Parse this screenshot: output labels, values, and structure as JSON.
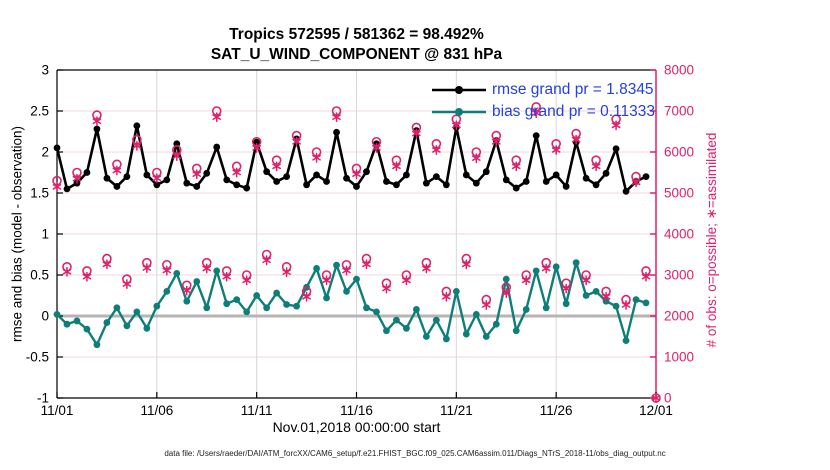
{
  "colors": {
    "rmse": "#000000",
    "bias": "#0e7f78",
    "obs": "#e0206a",
    "legend_text": "#2440e0",
    "grid_vertical": "#d8d8d8",
    "grid_horizontal": "#f3d4e0",
    "zero_line": "#b9b3b3",
    "axis_black": "#000000"
  },
  "footer": {
    "datafile": "data file: /Users/raeder/DAI/ATM_forcXX/CAM6_setup/f.e21.FHIST_BGC.f09_025.CAM6assim.011/Diags_NTrS_2018-11/obs_diag_output.nc"
  },
  "chart_data": {
    "type": "line",
    "title": {
      "line1": "Tropics 572595 / 581362 = 98.492%",
      "line2": "SAT_U_WIND_COMPONENT @ 831 hPa"
    },
    "xlabel": "Nov.01,2018 00:00:00 start",
    "grid": true,
    "x_axis": {
      "range_days": [
        0,
        30
      ],
      "tick_days": [
        0,
        5,
        10,
        15,
        20,
        25,
        30
      ],
      "tick_labels": [
        "11/01",
        "11/06",
        "11/11",
        "11/16",
        "11/21",
        "11/26",
        "12/01"
      ]
    },
    "left_axis": {
      "label": "rmse and bias (model - observation)",
      "range": [
        -1,
        3
      ],
      "ticks": [
        -1,
        -0.5,
        0,
        0.5,
        1,
        1.5,
        2,
        2.5,
        3
      ],
      "tick_labels": [
        "-1",
        "-0.5",
        "0",
        "0.5",
        "1",
        "1.5",
        "2",
        "2.5",
        "3"
      ]
    },
    "right_axis": {
      "label": "# of obs: o=possible; ∗=assimilated",
      "range": [
        0,
        8000
      ],
      "ticks": [
        0,
        1000,
        2000,
        3000,
        4000,
        5000,
        6000,
        7000,
        8000
      ],
      "tick_labels": [
        "0",
        "1000",
        "2000",
        "3000",
        "4000",
        "5000",
        "6000",
        "7000",
        "8000"
      ]
    },
    "legend": {
      "position": "upper-right-inside",
      "entries": [
        {
          "series": "rmse",
          "label": "rmse grand pr = 1.8345"
        },
        {
          "series": "bias",
          "label": "bias grand pr = 0.11333"
        }
      ]
    },
    "x_start_day": 0,
    "x_step_days": 0.5,
    "series": [
      {
        "name": "rmse",
        "axis": "left",
        "color_key": "rmse",
        "marker": "dot",
        "line": true,
        "line_width": 2.6,
        "grand_value": 1.8345,
        "values": [
          2.05,
          1.55,
          1.62,
          1.75,
          2.28,
          1.68,
          1.58,
          1.7,
          2.32,
          1.72,
          1.6,
          1.66,
          2.1,
          1.62,
          1.58,
          1.74,
          2.06,
          1.66,
          1.6,
          1.56,
          2.12,
          1.76,
          1.64,
          1.7,
          2.16,
          1.6,
          1.72,
          1.64,
          2.24,
          1.68,
          1.58,
          1.76,
          2.1,
          1.64,
          1.6,
          1.72,
          2.26,
          1.62,
          1.7,
          1.6,
          2.3,
          1.72,
          1.62,
          1.76,
          2.14,
          1.66,
          1.56,
          1.64,
          2.2,
          1.64,
          1.72,
          1.58,
          2.12,
          1.68,
          1.6,
          1.74,
          2.04,
          1.52,
          1.64,
          1.7
        ]
      },
      {
        "name": "bias",
        "axis": "left",
        "color_key": "bias",
        "marker": "dot",
        "line": true,
        "line_width": 2.4,
        "grand_value": 0.11333,
        "values": [
          0.02,
          -0.1,
          -0.06,
          -0.16,
          -0.35,
          -0.08,
          0.1,
          -0.12,
          0.05,
          -0.15,
          0.12,
          0.3,
          0.52,
          0.18,
          0.42,
          0.1,
          0.55,
          0.15,
          0.2,
          0.05,
          0.25,
          0.1,
          0.28,
          0.14,
          0.12,
          0.35,
          0.58,
          0.22,
          0.62,
          0.3,
          0.45,
          0.1,
          0.05,
          -0.18,
          -0.05,
          -0.15,
          0.08,
          -0.25,
          -0.05,
          -0.28,
          0.3,
          -0.22,
          0.02,
          -0.25,
          -0.1,
          0.45,
          -0.18,
          0.08,
          0.55,
          0.1,
          0.6,
          0.15,
          0.65,
          0.25,
          0.3,
          0.18,
          0.12,
          -0.3,
          0.2,
          0.16
        ]
      },
      {
        "name": "possible",
        "axis": "right",
        "color_key": "obs",
        "marker": "circle",
        "line": false,
        "total": 581362,
        "values": [
          5300,
          3200,
          5500,
          3100,
          6900,
          3400,
          5700,
          2900,
          6300,
          3300,
          5500,
          3250,
          6050,
          2750,
          5600,
          3300,
          7000,
          3100,
          5650,
          3000,
          6250,
          3500,
          5800,
          3200,
          6400,
          2600,
          6000,
          3000,
          7000,
          3250,
          5600,
          3400,
          6250,
          2800,
          5800,
          3000,
          6600,
          3300,
          6200,
          2600,
          6800,
          3400,
          6000,
          2400,
          6400,
          2700,
          5800,
          3000,
          7100,
          3300,
          6200,
          2800,
          6450,
          3000,
          5800,
          2600,
          6800,
          2400,
          5400,
          3100,
          0
        ]
      },
      {
        "name": "assimilated",
        "axis": "right",
        "color_key": "obs",
        "marker": "asterisk",
        "line": false,
        "total": 572595,
        "values": [
          5150,
          3080,
          5350,
          2960,
          6750,
          3260,
          5550,
          2780,
          6150,
          3170,
          5360,
          3110,
          5900,
          2620,
          5460,
          3160,
          6850,
          2960,
          5500,
          2870,
          6100,
          3360,
          5650,
          3070,
          6250,
          2470,
          5860,
          2870,
          6850,
          3110,
          5460,
          3260,
          6100,
          2670,
          5650,
          2870,
          6450,
          3160,
          6050,
          2470,
          6650,
          3260,
          5850,
          2270,
          6250,
          2560,
          5650,
          2870,
          6950,
          3160,
          6050,
          2670,
          6300,
          2870,
          5650,
          2470,
          6650,
          2270,
          5260,
          2960,
          0
        ]
      }
    ]
  }
}
